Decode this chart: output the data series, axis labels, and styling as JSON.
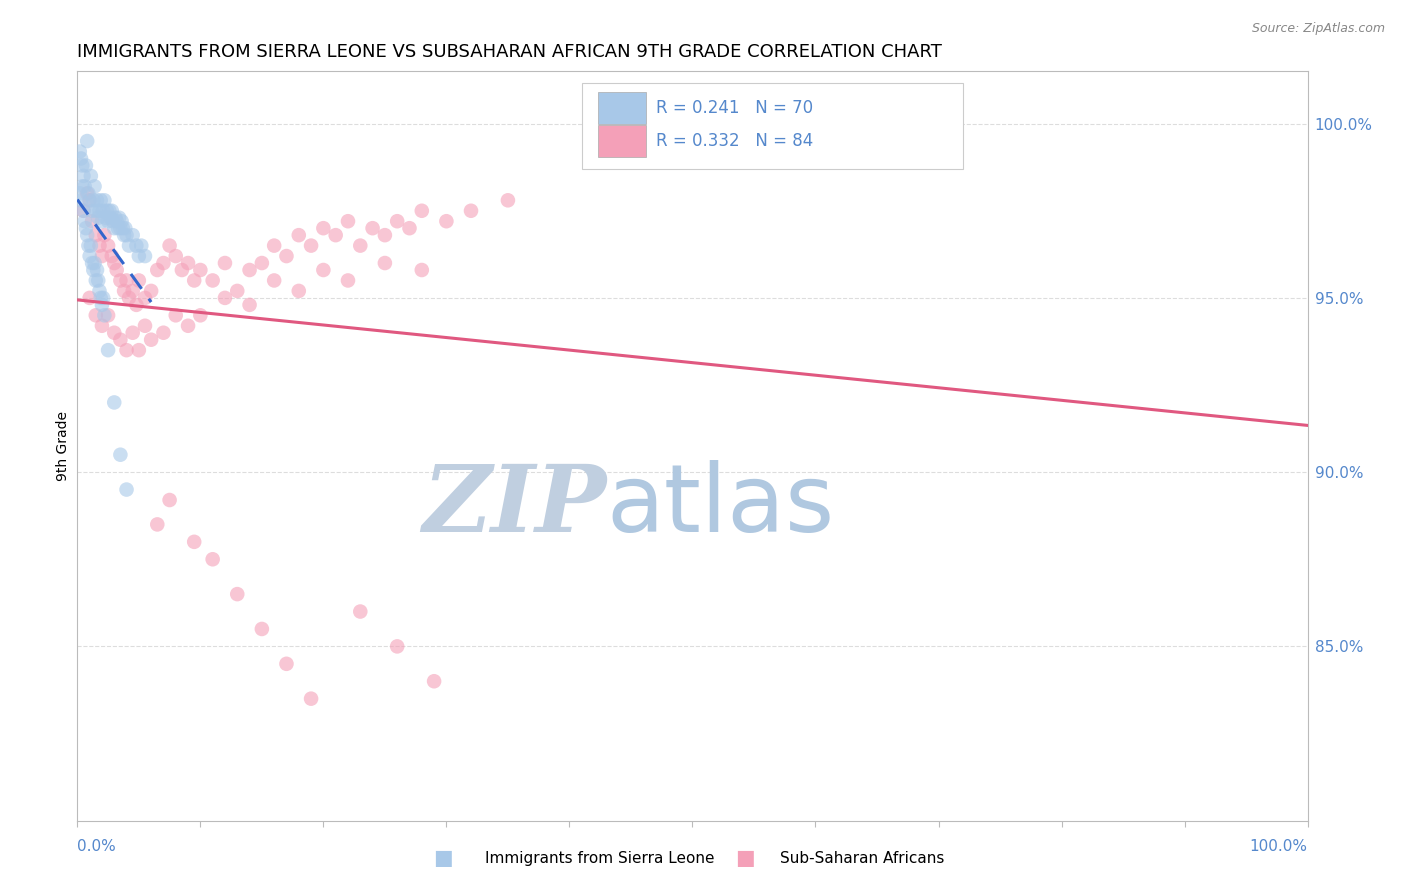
{
  "title": "IMMIGRANTS FROM SIERRA LEONE VS SUBSAHARAN AFRICAN 9TH GRADE CORRELATION CHART",
  "source_text": "Source: ZipAtlas.com",
  "ylabel_label": "9th Grade",
  "legend1_label": "Immigrants from Sierra Leone",
  "legend2_label": "Sub-Saharan Africans",
  "R_blue": 0.241,
  "N_blue": 70,
  "R_pink": 0.332,
  "N_pink": 84,
  "blue_color": "#a8c8e8",
  "blue_line_color": "#3366cc",
  "blue_line_dash": [
    6,
    4
  ],
  "pink_color": "#f4a0b8",
  "pink_line_color": "#e05880",
  "watermark_zip": "ZIP",
  "watermark_atlas": "atlas",
  "watermark_color_zip": "#c0cfe0",
  "watermark_color_atlas": "#b0c8e0",
  "title_fontsize": 13,
  "axis_color": "#5588cc",
  "grid_color": "#dddddd",
  "ylim_min": 80.0,
  "ylim_max": 101.5,
  "ylabel_ticks": [
    85.0,
    90.0,
    95.0,
    100.0
  ],
  "blue_scatter_x": [
    0.2,
    0.3,
    0.4,
    0.5,
    0.6,
    0.7,
    0.8,
    0.9,
    1.0,
    1.1,
    1.2,
    1.3,
    1.4,
    1.5,
    1.6,
    1.7,
    1.8,
    1.9,
    2.0,
    2.1,
    2.2,
    2.3,
    2.4,
    2.5,
    2.6,
    2.7,
    2.8,
    2.9,
    3.0,
    3.1,
    3.2,
    3.3,
    3.4,
    3.5,
    3.6,
    3.7,
    3.8,
    3.9,
    4.0,
    4.2,
    4.5,
    4.8,
    5.0,
    5.2,
    5.5,
    0.2,
    0.3,
    0.4,
    0.5,
    0.6,
    0.7,
    0.8,
    0.9,
    1.0,
    1.1,
    1.2,
    1.3,
    1.4,
    1.5,
    1.6,
    1.7,
    1.8,
    1.9,
    2.0,
    2.1,
    2.2,
    2.5,
    3.0,
    3.5,
    4.0
  ],
  "blue_scatter_y": [
    99.2,
    99.0,
    98.8,
    98.5,
    98.2,
    98.8,
    99.5,
    98.0,
    97.8,
    98.5,
    97.5,
    97.8,
    98.2,
    97.5,
    97.8,
    97.3,
    97.5,
    97.8,
    97.2,
    97.5,
    97.8,
    97.3,
    97.5,
    97.2,
    97.5,
    97.3,
    97.5,
    97.2,
    97.0,
    97.3,
    97.2,
    97.0,
    97.3,
    97.0,
    97.2,
    97.0,
    96.8,
    97.0,
    96.8,
    96.5,
    96.8,
    96.5,
    96.2,
    96.5,
    96.2,
    98.0,
    97.8,
    98.2,
    97.5,
    97.2,
    97.0,
    96.8,
    96.5,
    96.2,
    96.5,
    96.0,
    95.8,
    96.0,
    95.5,
    95.8,
    95.5,
    95.2,
    95.0,
    94.8,
    95.0,
    94.5,
    93.5,
    92.0,
    90.5,
    89.5
  ],
  "pink_scatter_x": [
    0.5,
    0.8,
    1.0,
    1.2,
    1.5,
    1.8,
    2.0,
    2.2,
    2.5,
    2.8,
    3.0,
    3.2,
    3.5,
    3.8,
    4.0,
    4.2,
    4.5,
    4.8,
    5.0,
    5.5,
    6.0,
    6.5,
    7.0,
    7.5,
    8.0,
    8.5,
    9.0,
    9.5,
    10.0,
    11.0,
    12.0,
    13.0,
    14.0,
    15.0,
    16.0,
    17.0,
    18.0,
    19.0,
    20.0,
    21.0,
    22.0,
    23.0,
    24.0,
    25.0,
    26.0,
    27.0,
    28.0,
    30.0,
    32.0,
    35.0,
    1.0,
    1.5,
    2.0,
    2.5,
    3.0,
    3.5,
    4.0,
    4.5,
    5.0,
    5.5,
    6.0,
    7.0,
    8.0,
    9.0,
    10.0,
    12.0,
    14.0,
    16.0,
    18.0,
    20.0,
    22.0,
    25.0,
    28.0,
    6.5,
    7.5,
    9.5,
    11.0,
    13.0,
    15.0,
    17.0,
    19.0,
    23.0,
    26.0,
    29.0
  ],
  "pink_scatter_y": [
    97.5,
    98.0,
    97.8,
    97.2,
    96.8,
    96.5,
    96.2,
    96.8,
    96.5,
    96.2,
    96.0,
    95.8,
    95.5,
    95.2,
    95.5,
    95.0,
    95.2,
    94.8,
    95.5,
    95.0,
    95.2,
    95.8,
    96.0,
    96.5,
    96.2,
    95.8,
    96.0,
    95.5,
    95.8,
    95.5,
    96.0,
    95.2,
    95.8,
    96.0,
    96.5,
    96.2,
    96.8,
    96.5,
    97.0,
    96.8,
    97.2,
    96.5,
    97.0,
    96.8,
    97.2,
    97.0,
    97.5,
    97.2,
    97.5,
    97.8,
    95.0,
    94.5,
    94.2,
    94.5,
    94.0,
    93.8,
    93.5,
    94.0,
    93.5,
    94.2,
    93.8,
    94.0,
    94.5,
    94.2,
    94.5,
    95.0,
    94.8,
    95.5,
    95.2,
    95.8,
    95.5,
    96.0,
    95.8,
    88.5,
    89.2,
    88.0,
    87.5,
    86.5,
    85.5,
    84.5,
    83.5,
    86.0,
    85.0,
    84.0
  ]
}
